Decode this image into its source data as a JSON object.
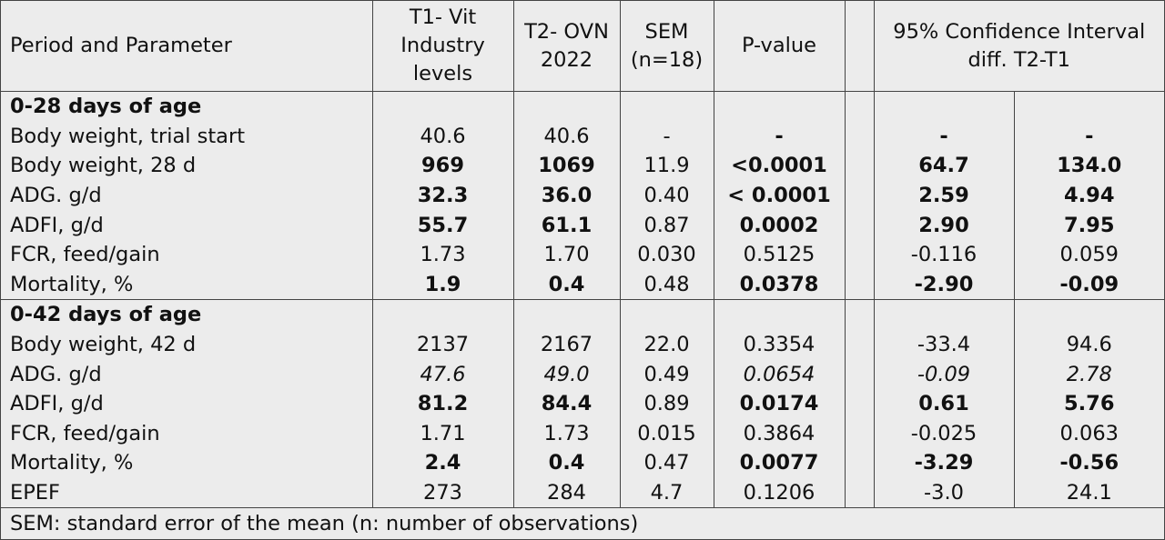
{
  "header": {
    "param": "Period and Parameter",
    "t1": "T1- Vit Industry levels",
    "t2": "T2- OVN 2022",
    "sem": "SEM (n=18)",
    "pvalue": "P-value",
    "ci": "95% Confidence Interval diff. T2-T1"
  },
  "sections": [
    {
      "title": "0-28 days of age",
      "rows": [
        {
          "label": "Body weight, trial start",
          "t1": "40.6",
          "t2": "40.6",
          "sem": "-",
          "p": "-",
          "lo": "-",
          "hi": "-",
          "style": [
            "n",
            "n",
            "n",
            "b",
            "b",
            "b"
          ]
        },
        {
          "label": "Body weight, 28 d",
          "t1": "969",
          "t2": "1069",
          "sem": "11.9",
          "p": "<0.0001",
          "lo": "64.7",
          "hi": "134.0",
          "style": [
            "b",
            "b",
            "n",
            "b",
            "b",
            "b"
          ]
        },
        {
          "label": "ADG. g/d",
          "t1": "32.3",
          "t2": "36.0",
          "sem": "0.40",
          "p": "< 0.0001",
          "lo": "2.59",
          "hi": "4.94",
          "style": [
            "b",
            "b",
            "n",
            "b",
            "b",
            "b"
          ]
        },
        {
          "label": "ADFI, g/d",
          "t1": "55.7",
          "t2": "61.1",
          "sem": "0.87",
          "p": "0.0002",
          "lo": "2.90",
          "hi": "7.95",
          "style": [
            "b",
            "b",
            "n",
            "b",
            "b",
            "b"
          ]
        },
        {
          "label": "FCR, feed/gain",
          "t1": "1.73",
          "t2": "1.70",
          "sem": "0.030",
          "p": "0.5125",
          "lo": "-0.116",
          "hi": "0.059",
          "style": [
            "n",
            "n",
            "n",
            "n",
            "n",
            "n"
          ]
        },
        {
          "label": "Mortality, %",
          "t1": "1.9",
          "t2": "0.4",
          "sem": "0.48",
          "p": "0.0378",
          "lo": "-2.90",
          "hi": "-0.09",
          "style": [
            "b",
            "b",
            "n",
            "b",
            "b",
            "b"
          ]
        }
      ]
    },
    {
      "title": "0-42 days of age",
      "rows": [
        {
          "label": "Body weight, 42 d",
          "t1": "2137",
          "t2": "2167",
          "sem": "22.0",
          "p": "0.3354",
          "lo": "-33.4",
          "hi": "94.6",
          "style": [
            "n",
            "n",
            "n",
            "n",
            "n",
            "n"
          ]
        },
        {
          "label": "ADG. g/d",
          "t1": "47.6",
          "t2": "49.0",
          "sem": "0.49",
          "p": "0.0654",
          "lo": "-0.09",
          "hi": "2.78",
          "style": [
            "i",
            "i",
            "n",
            "i",
            "i",
            "i"
          ]
        },
        {
          "label": "ADFI, g/d",
          "t1": "81.2",
          "t2": "84.4",
          "sem": "0.89",
          "p": "0.0174",
          "lo": "0.61",
          "hi": "5.76",
          "style": [
            "b",
            "b",
            "n",
            "b",
            "b",
            "b"
          ]
        },
        {
          "label": "FCR, feed/gain",
          "t1": "1.71",
          "t2": "1.73",
          "sem": "0.015",
          "p": "0.3864",
          "lo": "-0.025",
          "hi": "0.063",
          "style": [
            "n",
            "n",
            "n",
            "n",
            "n",
            "n"
          ]
        },
        {
          "label": "Mortality, %",
          "t1": "2.4",
          "t2": "0.4",
          "sem": "0.47",
          "p": "0.0077",
          "lo": "-3.29",
          "hi": "-0.56",
          "style": [
            "b",
            "b",
            "n",
            "b",
            "b",
            "b"
          ]
        },
        {
          "label": "EPEF",
          "t1": "273",
          "t2": "284",
          "sem": "4.7",
          "p": "0.1206",
          "lo": "-3.0",
          "hi": "24.1",
          "style": [
            "n",
            "n",
            "n",
            "n",
            "n",
            "n"
          ]
        }
      ]
    }
  ],
  "footnote": "SEM: standard error of the mean (n: number of observations)"
}
